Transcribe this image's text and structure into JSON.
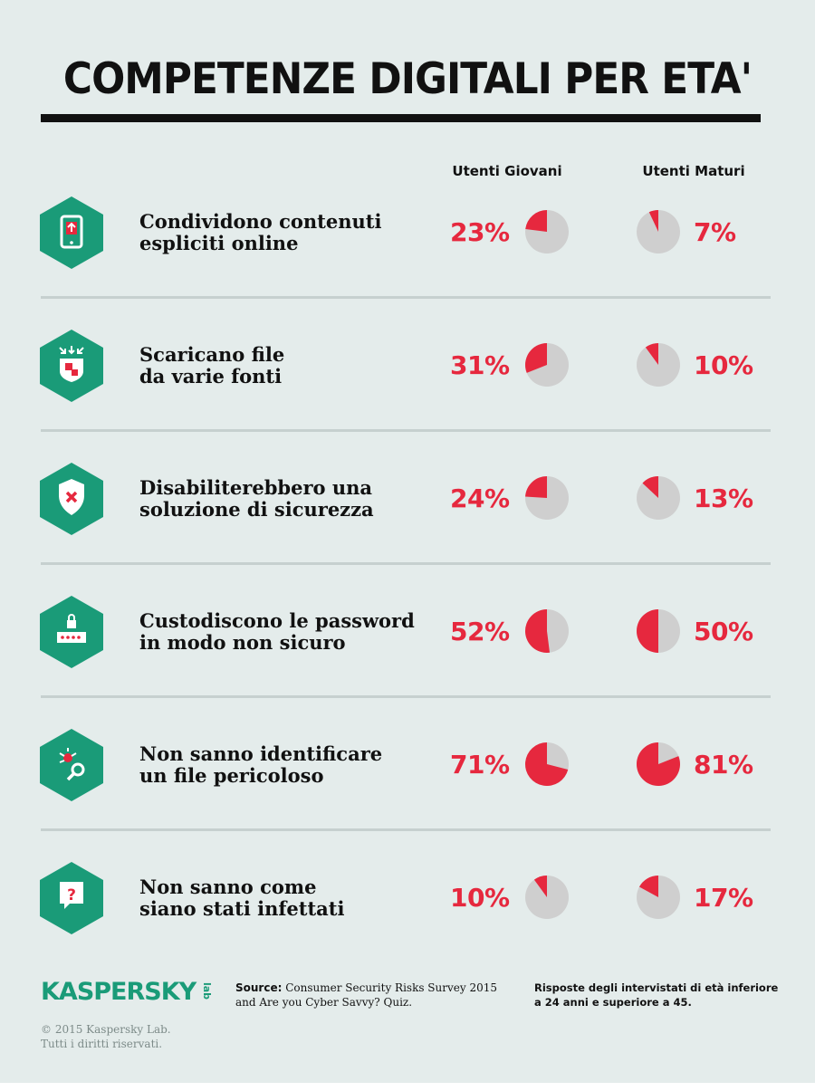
{
  "title": "COMPETENZE DIGITALI PER ETA'",
  "colors": {
    "accent": "#e6283e",
    "pie_bg": "#cfcfcf",
    "brand": "#1a9b78",
    "background": "#e4eceb"
  },
  "chart_data": {
    "type": "pie",
    "title": "COMPETENZE DIGITALI PER ETA'",
    "series_names": [
      "Utenti Giovani",
      "Utenti Maturi"
    ],
    "rows": [
      {
        "icon": "share-tablet-icon",
        "label_lines": [
          "Condividono contenuti",
          "espliciti online"
        ],
        "young": 23,
        "mature": 7,
        "young_label": "23%",
        "mature_label": "7%"
      },
      {
        "icon": "download-icon",
        "label_lines": [
          "Scaricano file",
          "da varie fonti"
        ],
        "young": 31,
        "mature": 10,
        "young_label": "31%",
        "mature_label": "10%"
      },
      {
        "icon": "shield-x-icon",
        "label_lines": [
          "Disabiliterebbero una",
          "soluzione di sicurezza"
        ],
        "young": 24,
        "mature": 13,
        "young_label": "24%",
        "mature_label": "13%"
      },
      {
        "icon": "password-lock-icon",
        "label_lines": [
          "Custodiscono le password",
          "in modo non sicuro"
        ],
        "young": 52,
        "mature": 50,
        "young_label": "52%",
        "mature_label": "50%"
      },
      {
        "icon": "bug-search-icon",
        "label_lines": [
          "Non sanno identificare",
          "un file pericoloso"
        ],
        "young": 71,
        "mature": 81,
        "young_label": "71%",
        "mature_label": "81%"
      },
      {
        "icon": "question-bubble-icon",
        "label_lines": [
          "Non sanno come",
          "siano stati infettati"
        ],
        "young": 10,
        "mature": 17,
        "young_label": "10%",
        "mature_label": "17%"
      }
    ]
  },
  "footer": {
    "logo": "KASPERSKY",
    "logo_suffix": "lab",
    "copyright_lines": [
      "© 2015 Kaspersky Lab.",
      "Tutti i diritti riservati."
    ],
    "source_label": "Source:",
    "source_text": " Consumer Security Risks Survey 2015 and Are you Cyber Savvy? Quiz.",
    "note_lines": [
      "Risposte degli intervistati di età inferiore",
      "a 24 anni e superiore a 45."
    ]
  }
}
